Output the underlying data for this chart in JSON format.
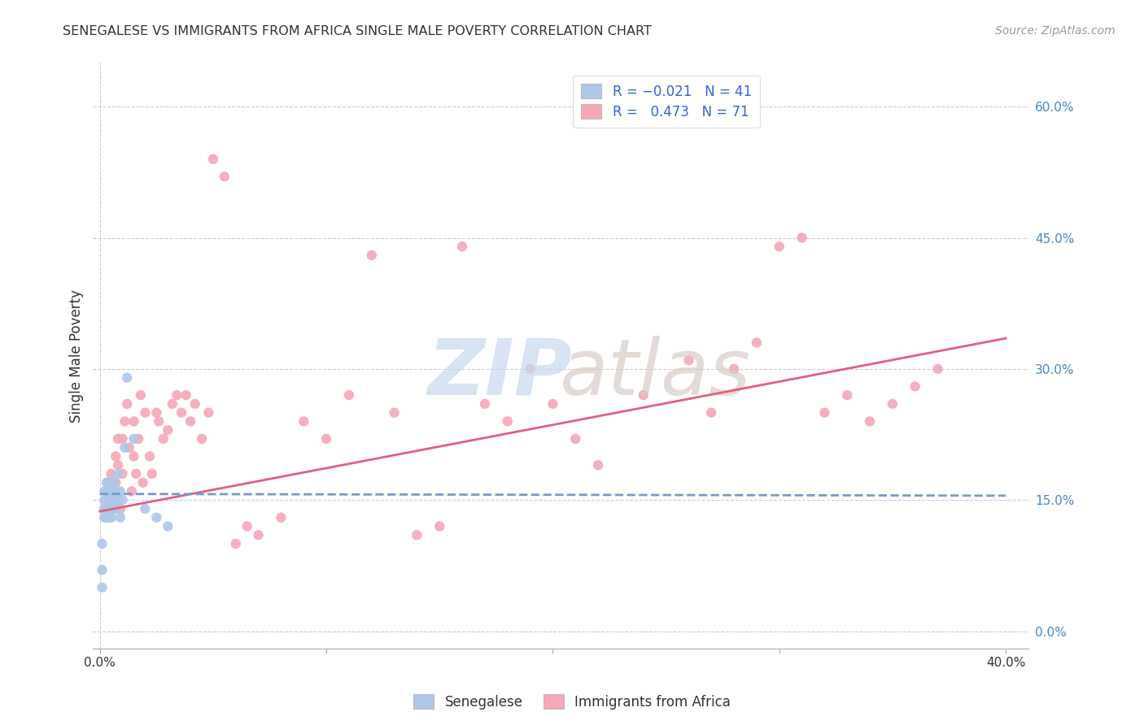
{
  "title": "SENEGALESE VS IMMIGRANTS FROM AFRICA SINGLE MALE POVERTY CORRELATION CHART",
  "source": "Source: ZipAtlas.com",
  "ylabel": "Single Male Poverty",
  "background_color": "#ffffff",
  "grid_color": "#cccccc",
  "series": [
    {
      "name": "Senegalese",
      "R": -0.021,
      "N": 41,
      "color": "#adc8e8",
      "line_color": "#7799cc",
      "line_style": "--"
    },
    {
      "name": "Immigrants from Africa",
      "R": 0.473,
      "N": 71,
      "color": "#f4a8b8",
      "line_color": "#e06080",
      "line_style": "-"
    }
  ],
  "xlim": [
    -0.003,
    0.41
  ],
  "ylim": [
    -0.02,
    0.65
  ],
  "xticks": [
    0.0,
    0.1,
    0.2,
    0.3,
    0.4
  ],
  "xtick_labels": [
    "0.0%",
    "",
    "",
    "",
    "40.0%"
  ],
  "yticks_right": [
    0.0,
    0.15,
    0.3,
    0.45,
    0.6
  ],
  "ytick_right_labels": [
    "0.0%",
    "15.0%",
    "30.0%",
    "45.0%",
    "60.0%"
  ],
  "hlines": [
    0.0,
    0.15,
    0.3,
    0.45,
    0.6
  ],
  "marker_size": 80,
  "watermark_zip_color": "#c8d8ee",
  "watermark_atlas_color": "#d8ccc8",
  "sen_x": [
    0.001,
    0.001,
    0.001,
    0.002,
    0.002,
    0.002,
    0.002,
    0.003,
    0.003,
    0.003,
    0.003,
    0.003,
    0.003,
    0.004,
    0.004,
    0.004,
    0.004,
    0.004,
    0.005,
    0.005,
    0.005,
    0.005,
    0.005,
    0.006,
    0.006,
    0.006,
    0.006,
    0.007,
    0.007,
    0.007,
    0.008,
    0.008,
    0.009,
    0.009,
    0.01,
    0.011,
    0.012,
    0.015,
    0.02,
    0.025,
    0.03
  ],
  "sen_y": [
    0.05,
    0.07,
    0.1,
    0.13,
    0.14,
    0.15,
    0.16,
    0.13,
    0.14,
    0.15,
    0.15,
    0.16,
    0.17,
    0.13,
    0.14,
    0.15,
    0.16,
    0.17,
    0.13,
    0.14,
    0.15,
    0.16,
    0.17,
    0.14,
    0.15,
    0.16,
    0.17,
    0.14,
    0.15,
    0.16,
    0.15,
    0.18,
    0.13,
    0.16,
    0.15,
    0.21,
    0.29,
    0.22,
    0.14,
    0.13,
    0.12
  ],
  "imm_x": [
    0.002,
    0.003,
    0.004,
    0.005,
    0.005,
    0.006,
    0.007,
    0.007,
    0.008,
    0.008,
    0.009,
    0.01,
    0.01,
    0.011,
    0.012,
    0.013,
    0.014,
    0.015,
    0.015,
    0.016,
    0.017,
    0.018,
    0.019,
    0.02,
    0.022,
    0.023,
    0.025,
    0.026,
    0.028,
    0.03,
    0.032,
    0.034,
    0.036,
    0.038,
    0.04,
    0.042,
    0.045,
    0.048,
    0.05,
    0.055,
    0.06,
    0.065,
    0.07,
    0.08,
    0.09,
    0.1,
    0.11,
    0.12,
    0.13,
    0.14,
    0.15,
    0.16,
    0.17,
    0.18,
    0.19,
    0.2,
    0.21,
    0.22,
    0.24,
    0.26,
    0.27,
    0.28,
    0.29,
    0.3,
    0.31,
    0.32,
    0.33,
    0.34,
    0.35,
    0.36,
    0.37
  ],
  "imm_y": [
    0.14,
    0.16,
    0.13,
    0.15,
    0.18,
    0.14,
    0.2,
    0.17,
    0.19,
    0.22,
    0.14,
    0.18,
    0.22,
    0.24,
    0.26,
    0.21,
    0.16,
    0.2,
    0.24,
    0.18,
    0.22,
    0.27,
    0.17,
    0.25,
    0.2,
    0.18,
    0.25,
    0.24,
    0.22,
    0.23,
    0.26,
    0.27,
    0.25,
    0.27,
    0.24,
    0.26,
    0.22,
    0.25,
    0.54,
    0.52,
    0.1,
    0.12,
    0.11,
    0.13,
    0.24,
    0.22,
    0.27,
    0.43,
    0.25,
    0.11,
    0.12,
    0.44,
    0.26,
    0.24,
    0.3,
    0.26,
    0.22,
    0.19,
    0.27,
    0.31,
    0.25,
    0.3,
    0.33,
    0.44,
    0.45,
    0.25,
    0.27,
    0.24,
    0.26,
    0.28,
    0.3
  ],
  "sen_line": [
    0.157,
    0.155
  ],
  "imm_line": [
    0.137,
    0.335
  ]
}
